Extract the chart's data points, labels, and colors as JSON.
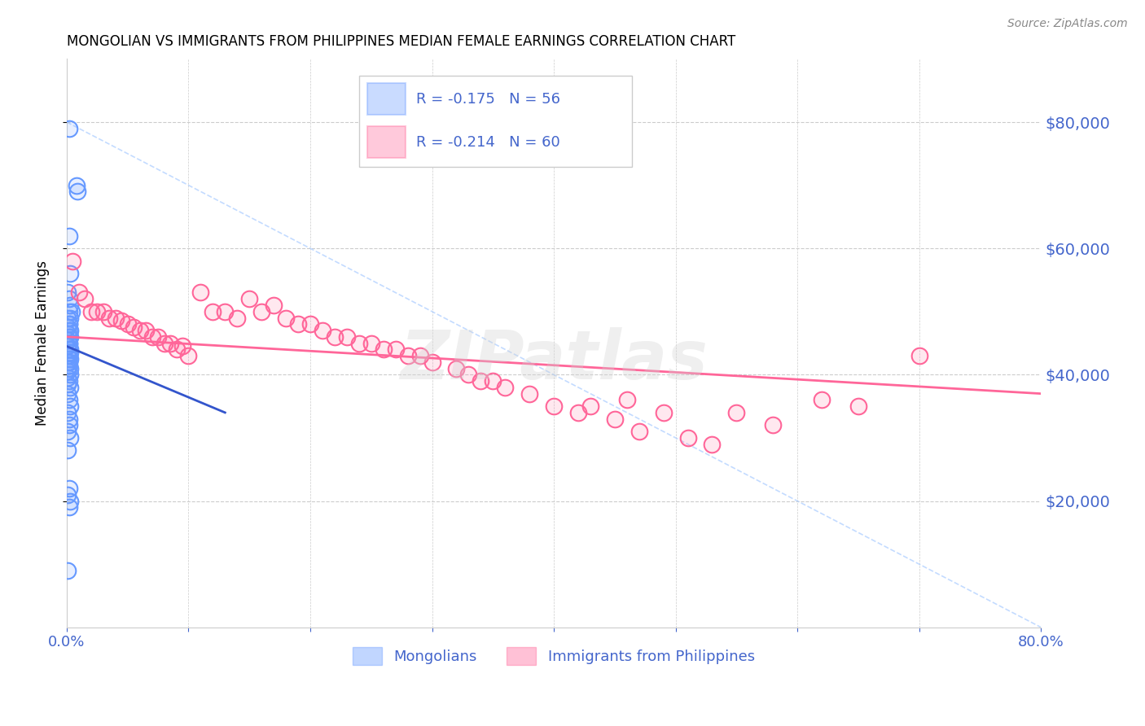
{
  "title": "MONGOLIAN VS IMMIGRANTS FROM PHILIPPINES MEDIAN FEMALE EARNINGS CORRELATION CHART",
  "source": "Source: ZipAtlas.com",
  "ylabel": "Median Female Earnings",
  "xlim": [
    0,
    0.8
  ],
  "ylim": [
    0,
    90000
  ],
  "legend_r1": "-0.175",
  "legend_n1": "56",
  "legend_r2": "-0.214",
  "legend_n2": "60",
  "legend_label1": "Mongolians",
  "legend_label2": "Immigrants from Philippines",
  "blue_color": "#6699ff",
  "pink_color": "#ff6699",
  "axis_color": "#4466cc",
  "watermark": "ZIPatlas",
  "blue_scatter_x": [
    0.002,
    0.008,
    0.009,
    0.002,
    0.003,
    0.001,
    0.002,
    0.003,
    0.004,
    0.002,
    0.001,
    0.003,
    0.002,
    0.002,
    0.001,
    0.003,
    0.002,
    0.001,
    0.002,
    0.003,
    0.001,
    0.002,
    0.002,
    0.001,
    0.002,
    0.003,
    0.002,
    0.003,
    0.001,
    0.002,
    0.003,
    0.001,
    0.002,
    0.002,
    0.003,
    0.001,
    0.001,
    0.003,
    0.001,
    0.002,
    0.001,
    0.003,
    0.001,
    0.002,
    0.003,
    0.001,
    0.002,
    0.002,
    0.001,
    0.003,
    0.001,
    0.002,
    0.001,
    0.003,
    0.001,
    0.002
  ],
  "blue_scatter_y": [
    79000,
    70000,
    69000,
    62000,
    56000,
    53000,
    52000,
    51000,
    50000,
    50000,
    49000,
    49000,
    48000,
    48000,
    47500,
    47000,
    47000,
    46500,
    46000,
    46000,
    45500,
    45000,
    45000,
    44500,
    44000,
    44000,
    44000,
    43500,
    43000,
    43000,
    42500,
    42000,
    42000,
    41500,
    41000,
    41000,
    40500,
    40000,
    39500,
    39000,
    38500,
    38000,
    37000,
    36000,
    35000,
    34000,
    33000,
    32000,
    31000,
    30000,
    28000,
    22000,
    21000,
    20000,
    9000,
    19000
  ],
  "blue_trendline_x": [
    0.0,
    0.13
  ],
  "blue_trendline_y": [
    44500,
    34000
  ],
  "pink_scatter_x": [
    0.005,
    0.01,
    0.02,
    0.015,
    0.025,
    0.03,
    0.05,
    0.06,
    0.08,
    0.07,
    0.04,
    0.035,
    0.09,
    0.1,
    0.045,
    0.055,
    0.065,
    0.075,
    0.085,
    0.095,
    0.11,
    0.13,
    0.15,
    0.17,
    0.19,
    0.21,
    0.23,
    0.25,
    0.27,
    0.29,
    0.14,
    0.16,
    0.18,
    0.2,
    0.22,
    0.24,
    0.26,
    0.28,
    0.3,
    0.32,
    0.34,
    0.36,
    0.38,
    0.12,
    0.35,
    0.33,
    0.4,
    0.42,
    0.45,
    0.47,
    0.49,
    0.51,
    0.55,
    0.58,
    0.62,
    0.65,
    0.7,
    0.53,
    0.43,
    0.46
  ],
  "pink_scatter_y": [
    58000,
    53000,
    50000,
    52000,
    50000,
    50000,
    48000,
    47000,
    45000,
    46000,
    49000,
    49000,
    44000,
    43000,
    48500,
    47500,
    47000,
    46000,
    45000,
    44500,
    53000,
    50000,
    52000,
    51000,
    48000,
    47000,
    46000,
    45000,
    44000,
    43000,
    49000,
    50000,
    49000,
    48000,
    46000,
    45000,
    44000,
    43000,
    42000,
    41000,
    39000,
    38000,
    37000,
    50000,
    39000,
    40000,
    35000,
    34000,
    33000,
    31000,
    34000,
    30000,
    34000,
    32000,
    36000,
    35000,
    43000,
    29000,
    35000,
    36000
  ],
  "pink_trendline_x": [
    0.0,
    0.8
  ],
  "pink_trendline_y": [
    46000,
    37000
  ],
  "diag_line_x": [
    0.0,
    0.8
  ],
  "diag_line_y": [
    80000,
    0
  ]
}
